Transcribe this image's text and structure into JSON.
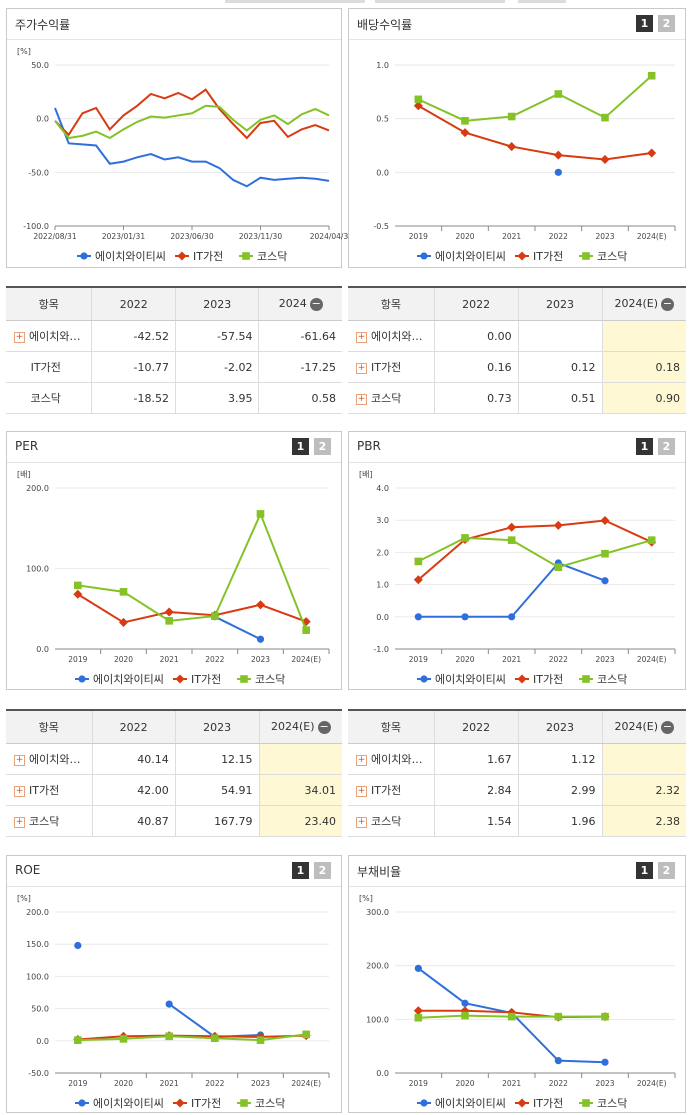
{
  "series_names": [
    "에이치와이티씨",
    "IT가전",
    "코스닥"
  ],
  "colors": {
    "s0": "#2e6fdc",
    "s1": "#d83b12",
    "s2": "#84c226"
  },
  "charts": {
    "stock": {
      "title": "주가수익률",
      "unit": "[%]",
      "buttons": [],
      "chart_data": {
        "type": "line",
        "title": "주가수익률",
        "ylabel": "[%]",
        "ylim": [
          -100,
          50
        ],
        "yticks": [
          "50.0",
          "0.0",
          "-50.0",
          "-100.0"
        ],
        "xtick_labels": [
          "2022/08/31",
          "2023/01/31",
          "2023/06/30",
          "2023/11/30",
          "2024/04/3"
        ],
        "xtick_index": [
          0,
          5,
          10,
          15,
          20
        ],
        "series": [
          {
            "name": "에이치와이티씨",
            "values": [
              10,
              -23,
              -24,
              -25,
              -42,
              -40,
              -36,
              -33,
              -38,
              -36,
              -40,
              -40,
              -46,
              -57,
              -63,
              -55,
              -57,
              -56,
              -55,
              -56,
              -58
            ]
          },
          {
            "name": "IT가전",
            "values": [
              -2,
              -15,
              5,
              10,
              -10,
              3,
              12,
              23,
              19,
              24,
              18,
              27,
              9,
              -5,
              -18,
              -4,
              -2,
              -17,
              -10,
              -6,
              -11
            ]
          },
          {
            "name": "코스닥",
            "values": [
              -2,
              -18,
              -16,
              -12,
              -18,
              -10,
              -3,
              2,
              1,
              3,
              5,
              12,
              11,
              -1,
              -11,
              -1,
              3,
              -5,
              4,
              9,
              3
            ]
          }
        ]
      }
    },
    "div": {
      "title": "배당수익률",
      "unit": "",
      "buttons": [
        "1",
        "2"
      ],
      "chart_data": {
        "type": "line",
        "title": "배당수익률",
        "ylim": [
          -0.5,
          1.0
        ],
        "yticks": [
          "1.0",
          "0.5",
          "0.0",
          "-0.5"
        ],
        "categories": [
          "2019",
          "2020",
          "2021",
          "2022",
          "2023",
          "2024(E)"
        ],
        "series": [
          {
            "name": "에이치와이티씨",
            "values": [
              null,
              null,
              null,
              0.0,
              null,
              null
            ]
          },
          {
            "name": "IT가전",
            "values": [
              0.62,
              0.37,
              0.24,
              0.16,
              0.12,
              0.18
            ]
          },
          {
            "name": "코스닥",
            "values": [
              0.68,
              0.48,
              0.52,
              0.73,
              0.51,
              0.9
            ]
          }
        ]
      }
    },
    "per": {
      "title": "PER",
      "unit": "[배]",
      "buttons": [
        "1",
        "2"
      ],
      "chart_data": {
        "type": "line",
        "title": "PER",
        "ylabel": "[배]",
        "ylim": [
          0,
          200
        ],
        "yticks": [
          "200.0",
          "100.0",
          "0.0"
        ],
        "categories": [
          "2019",
          "2020",
          "2021",
          "2022",
          "2023",
          "2024(E)"
        ],
        "series": [
          {
            "name": "에이치와이티씨",
            "values": [
              null,
              null,
              null,
              40.14,
              12.15,
              null
            ]
          },
          {
            "name": "IT가전",
            "values": [
              68,
              33,
              46,
              42.0,
              54.91,
              34.01
            ]
          },
          {
            "name": "코스닥",
            "values": [
              79,
              71,
              35,
              40.87,
              167.79,
              23.4
            ]
          }
        ]
      }
    },
    "pbr": {
      "title": "PBR",
      "unit": "[배]",
      "buttons": [
        "1",
        "2"
      ],
      "chart_data": {
        "type": "line",
        "title": "PBR",
        "ylabel": "[배]",
        "ylim": [
          -1,
          4
        ],
        "yticks": [
          "4.0",
          "3.0",
          "2.0",
          "1.0",
          "0.0",
          "-1.0"
        ],
        "categories": [
          "2019",
          "2020",
          "2021",
          "2022",
          "2023",
          "2024(E)"
        ],
        "series": [
          {
            "name": "에이치와이티씨",
            "values": [
              0,
              0,
              0,
              1.67,
              1.12,
              null
            ]
          },
          {
            "name": "IT가전",
            "values": [
              1.15,
              2.4,
              2.78,
              2.84,
              2.99,
              2.32
            ]
          },
          {
            "name": "코스닥",
            "values": [
              1.72,
              2.45,
              2.38,
              1.54,
              1.96,
              2.38
            ]
          }
        ]
      }
    },
    "roe": {
      "title": "ROE",
      "unit": "[%]",
      "buttons": [
        "1",
        "2"
      ],
      "chart_data": {
        "type": "line",
        "title": "ROE",
        "ylabel": "[%]",
        "ylim": [
          -50,
          200
        ],
        "yticks": [
          "200.0",
          "150.0",
          "100.0",
          "50.0",
          "0.0",
          "-50.0"
        ],
        "categories": [
          "2019",
          "2020",
          "2021",
          "2022",
          "2023",
          "2024(E)"
        ],
        "series": [
          {
            "name": "에이치와이티씨",
            "values": [
              148,
              null,
              57,
              6,
              9,
              null
            ]
          },
          {
            "name": "IT가전",
            "values": [
              2,
              7,
              8,
              7,
              6,
              8
            ]
          },
          {
            "name": "코스닥",
            "values": [
              1,
              3,
              7,
              4,
              1,
              10
            ]
          }
        ]
      }
    },
    "debt": {
      "title": "부채비율",
      "unit": "[%]",
      "buttons": [
        "1",
        "2"
      ],
      "chart_data": {
        "type": "line",
        "title": "부채비율",
        "ylabel": "[%]",
        "ylim": [
          0,
          300
        ],
        "yticks": [
          "300.0",
          "200.0",
          "100.0",
          "0.0"
        ],
        "categories": [
          "2019",
          "2020",
          "2021",
          "2022",
          "2023",
          "2024(E)"
        ],
        "series": [
          {
            "name": "에이치와이티씨",
            "values": [
              195,
              130,
              112,
              23,
              20,
              null
            ]
          },
          {
            "name": "IT가전",
            "values": [
              116,
              116,
              113,
              104,
              105,
              null
            ]
          },
          {
            "name": "코스닥",
            "values": [
              103,
              107,
              105,
              105,
              105,
              null
            ]
          }
        ]
      }
    }
  },
  "tables": {
    "stock": {
      "headers": [
        "항목",
        "2022",
        "2023",
        "2024"
      ],
      "rows": [
        {
          "name": "에이치와…",
          "values": [
            "-42.52",
            "-57.54",
            "-61.64"
          ],
          "plus": true
        },
        {
          "name": "IT가전",
          "values": [
            "-10.77",
            "-2.02",
            "-17.25"
          ],
          "plus": false
        },
        {
          "name": "코스닥",
          "values": [
            "-18.52",
            "3.95",
            "0.58"
          ],
          "plus": false
        }
      ]
    },
    "div": {
      "headers": [
        "항목",
        "2022",
        "2023",
        "2024(E)"
      ],
      "rows": [
        {
          "name": "에이치와…",
          "values": [
            "0.00",
            "",
            ""
          ],
          "plus": true
        },
        {
          "name": "IT가전",
          "values": [
            "0.16",
            "0.12",
            "0.18"
          ],
          "plus": true
        },
        {
          "name": "코스닥",
          "values": [
            "0.73",
            "0.51",
            "0.90"
          ],
          "plus": true
        }
      ]
    },
    "per": {
      "headers": [
        "항목",
        "2022",
        "2023",
        "2024(E)"
      ],
      "rows": [
        {
          "name": "에이치와…",
          "values": [
            "40.14",
            "12.15",
            ""
          ],
          "plus": true
        },
        {
          "name": "IT가전",
          "values": [
            "42.00",
            "54.91",
            "34.01"
          ],
          "plus": true
        },
        {
          "name": "코스닥",
          "values": [
            "40.87",
            "167.79",
            "23.40"
          ],
          "plus": true
        }
      ]
    },
    "pbr": {
      "headers": [
        "항목",
        "2022",
        "2023",
        "2024(E)"
      ],
      "rows": [
        {
          "name": "에이치와…",
          "values": [
            "1.67",
            "1.12",
            ""
          ],
          "plus": true
        },
        {
          "name": "IT가전",
          "values": [
            "2.84",
            "2.99",
            "2.32"
          ],
          "plus": true
        },
        {
          "name": "코스닥",
          "values": [
            "1.54",
            "1.96",
            "2.38"
          ],
          "plus": true
        }
      ]
    }
  }
}
